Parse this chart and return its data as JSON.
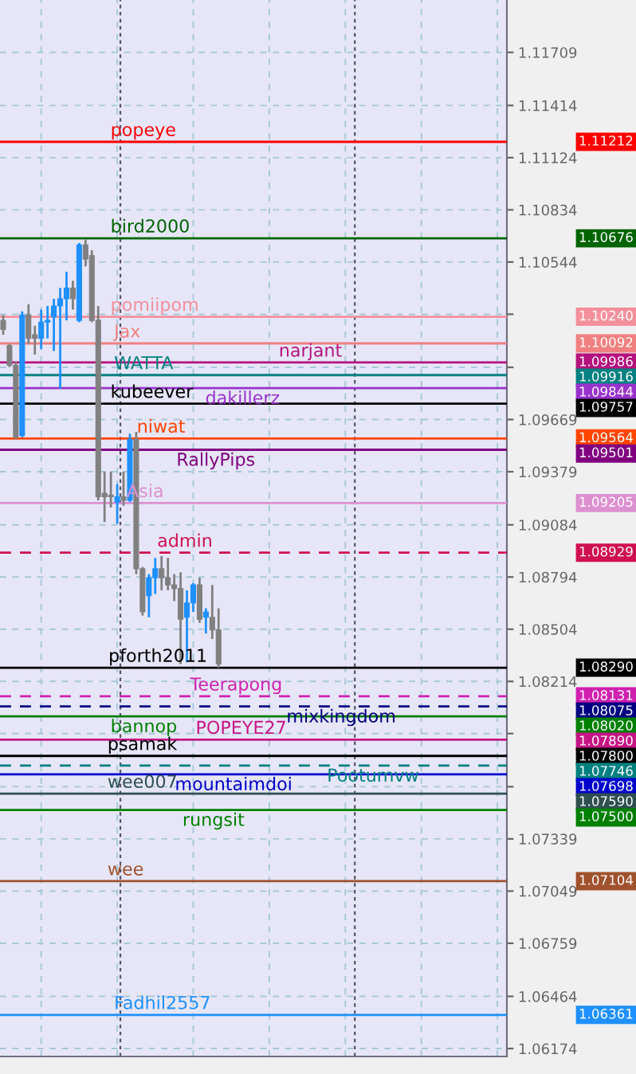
{
  "chart_data": {
    "type": "candlestick",
    "categories": [
      null,
      null,
      null,
      null,
      null,
      null,
      null,
      null,
      null,
      null,
      null,
      null,
      null,
      null,
      null,
      null,
      null,
      null,
      null,
      null,
      null,
      null,
      null,
      null,
      null,
      null,
      null,
      null,
      null,
      null,
      null,
      null,
      null,
      null,
      null,
      null,
      null,
      null,
      null,
      null,
      null,
      null,
      null,
      null,
      null,
      null,
      null,
      null,
      null,
      null,
      null,
      null,
      null,
      null,
      null,
      null,
      null,
      null,
      null,
      null,
      null,
      null,
      null,
      null,
      null,
      null,
      null,
      null,
      null,
      null,
      null,
      null,
      null,
      null,
      null,
      null,
      null,
      null,
      null,
      null
    ],
    "ohlc": [
      [
        1.1022,
        1.1025,
        1.1014,
        1.1017
      ],
      [
        1.1008,
        1.1009,
        1.0996,
        1.0997
      ],
      [
        1.0997,
        1.0999,
        1.0956,
        1.0957
      ],
      [
        1.0958,
        1.1027,
        1.0957,
        1.1025
      ],
      [
        1.1025,
        1.1031,
        1.1009,
        1.1012
      ],
      [
        1.1014,
        1.1019,
        1.1003,
        1.1012
      ],
      [
        1.1012,
        1.1028,
        1.1006,
        1.1021
      ],
      [
        1.1021,
        1.103,
        1.1012,
        1.1022
      ],
      [
        1.1024,
        1.1034,
        1.1005,
        1.103
      ],
      [
        1.103,
        1.104,
        1.0984,
        1.1034
      ],
      [
        1.1034,
        1.1049,
        1.1022,
        1.104
      ],
      [
        1.104,
        1.1044,
        1.1028,
        1.1034
      ],
      [
        1.1022,
        1.1065,
        1.1021,
        1.1064
      ],
      [
        1.1064,
        1.1067,
        1.1052,
        1.1056
      ],
      [
        1.1058,
        1.1061,
        1.1021,
        1.1022
      ],
      [
        1.1022,
        1.103,
        1.0922,
        1.0924
      ],
      [
        1.0926,
        1.0938,
        1.091,
        1.0924
      ],
      [
        1.0925,
        1.0938,
        1.0918,
        1.0924
      ],
      [
        1.0921,
        1.0931,
        1.0909,
        1.0924
      ],
      [
        1.0924,
        1.0938,
        1.0919,
        1.0922
      ],
      [
        1.0922,
        1.0959,
        1.0921,
        1.0956
      ],
      [
        1.0956,
        1.096,
        1.0881,
        1.0884
      ],
      [
        1.0884,
        1.0885,
        1.0858,
        1.086
      ],
      [
        1.0869,
        1.0881,
        1.0857,
        1.0879
      ],
      [
        1.0879,
        1.089,
        1.087,
        1.0884
      ],
      [
        1.0884,
        1.0891,
        1.0872,
        1.0879
      ],
      [
        1.0879,
        1.089,
        1.0872,
        1.0875
      ],
      [
        1.0875,
        1.0881,
        1.0866,
        1.0873
      ],
      [
        1.0873,
        1.0882,
        1.0831,
        1.0856
      ],
      [
        1.0857,
        1.0872,
        1.0832,
        1.0865
      ],
      [
        1.0865,
        1.0876,
        1.086,
        1.0875
      ],
      [
        1.0875,
        1.0879,
        1.0854,
        1.0856
      ],
      [
        1.0857,
        1.0862,
        1.0848,
        1.086
      ],
      [
        1.0857,
        1.0875,
        1.0845,
        1.085
      ],
      [
        1.085,
        1.0862,
        1.0829,
        1.0831
      ],
      null,
      null,
      null,
      null,
      null,
      null,
      null,
      null,
      null,
      null,
      null,
      null,
      null,
      null,
      null,
      null,
      null,
      null,
      null,
      null,
      null,
      null,
      null,
      null,
      null,
      null,
      null,
      null,
      null,
      null,
      null,
      null,
      null,
      null,
      null,
      null,
      null,
      null,
      null,
      null,
      null,
      null,
      null,
      null,
      null
    ],
    "colors": [
      "#808080",
      "#808080",
      "#808080",
      "#1e90ff",
      "#808080",
      "#808080",
      "#1e90ff",
      "#1e90ff",
      "#1e90ff",
      "#1e90ff",
      "#1e90ff",
      "#808080",
      "#1e90ff",
      "#808080",
      "#808080",
      "#808080",
      "#808080",
      "#808080",
      "#1e90ff",
      "#808080",
      "#1e90ff",
      "#808080",
      "#808080",
      "#1e90ff",
      "#1e90ff",
      "#808080",
      "#808080",
      "#808080",
      "#808080",
      "#1e90ff",
      "#1e90ff",
      "#808080",
      "#1e90ff",
      "#808080",
      "#808080",
      null,
      null,
      null,
      null,
      null,
      null,
      null,
      null,
      null,
      null,
      null,
      null,
      null,
      null,
      null,
      null,
      null,
      null,
      null,
      null,
      null,
      null,
      null,
      null,
      null,
      null,
      null,
      null,
      null,
      null,
      null,
      null,
      null,
      null,
      null,
      null,
      null,
      null,
      null,
      null,
      null,
      null,
      null,
      null,
      null
    ],
    "ylim": [
      1.0613,
      1.12
    ],
    "yticks": [
      1.11709,
      1.11414,
      1.11124,
      1.10834,
      1.10544,
      {
        "value": 1.10254,
        "label": null
      },
      {
        "value": 1.09959,
        "label": null
      },
      1.09669,
      1.09379,
      1.09084,
      1.08794,
      1.08504,
      1.08214,
      {
        "value": 1.07924,
        "label": null
      },
      {
        "value": 1.07629,
        "label": null
      },
      1.07339,
      1.07049,
      1.06759,
      1.06464,
      1.06174
    ],
    "grid": true,
    "annotations": [
      "1.11212",
      "1.10676",
      "1.10240",
      "1.10092",
      "1.09986",
      "1.09916",
      "1.09844",
      "1.09757",
      "1.09564",
      "1.09501",
      "1.09205",
      "1.08929",
      "1.08290",
      "1.08131",
      "1.08075",
      "1.08020",
      "1.07890",
      "1.07800",
      "1.07746",
      "1.07698",
      "1.07590",
      "1.07500",
      "1.07104",
      "1.06361"
    ],
    "ref_lines": [
      {
        "axis": "y",
        "value": 1.11212,
        "label": "popeye",
        "color": "#ff0000",
        "line_style": "solid"
      },
      {
        "axis": "y",
        "value": 1.10676,
        "label": "bird2000",
        "color": "#006400",
        "line_style": "solid"
      },
      {
        "axis": "y",
        "value": 1.1024,
        "label": "pomiipom",
        "color": "#f4909c",
        "line_style": "solid"
      },
      {
        "axis": "y",
        "value": 1.10092,
        "label": "Jax",
        "color": "#f08080",
        "line_style": "solid"
      },
      {
        "axis": "y",
        "value": 1.09986,
        "label": "narjant",
        "color": "#b5127d",
        "line_style": "solid"
      },
      {
        "axis": "y",
        "value": 1.09916,
        "label": "WATTA",
        "color": "#008080",
        "line_style": "solid"
      },
      {
        "axis": "y",
        "value": 1.09844,
        "label": "dakillerz",
        "color": "#9932cc",
        "line_style": "solid"
      },
      {
        "axis": "y",
        "value": 1.09757,
        "label": "kubeever",
        "color": "#000000",
        "line_style": "solid"
      },
      {
        "axis": "y",
        "value": 1.09564,
        "label": "niwat",
        "color": "#ff4500",
        "line_style": "solid"
      },
      {
        "axis": "y",
        "value": 1.09501,
        "label": "RallyPips",
        "color": "#800080",
        "line_style": "solid"
      },
      {
        "axis": "y",
        "value": 1.09205,
        "label": "Asia",
        "color": "#dd90d0",
        "line_style": "solid"
      },
      {
        "axis": "y",
        "value": 1.08929,
        "label": "admin",
        "color": "#d01050",
        "line_style": "dashed"
      },
      {
        "axis": "y",
        "value": 1.0829,
        "label": "pforth2011",
        "color": "#000000",
        "line_style": "solid"
      },
      {
        "axis": "y",
        "value": 1.08131,
        "label": "Teerapong",
        "color": "#d020b0",
        "line_style": "dashed"
      },
      {
        "axis": "y",
        "value": 1.08075,
        "label": "mixkingdom",
        "color": "#000080",
        "line_style": "dashed"
      },
      {
        "axis": "y",
        "value": 1.0802,
        "label": "bannop",
        "color": "#008000",
        "line_style": "solid"
      },
      {
        "axis": "y",
        "value": 1.0789,
        "label": "POPEYE27",
        "color": "#c71585",
        "line_style": "solid"
      },
      {
        "axis": "y",
        "value": 1.078,
        "label": "psamak",
        "color": "#000000",
        "line_style": "solid"
      },
      {
        "axis": "y",
        "value": 1.07746,
        "label": "Pootumvw",
        "color": "#008080",
        "line_style": "dashed"
      },
      {
        "axis": "y",
        "value": 1.07698,
        "label": "mountaimdoi",
        "color": "#0000cd",
        "line_style": "solid"
      },
      {
        "axis": "y",
        "value": 1.0759,
        "label": "wee007",
        "color": "#2f4f4f",
        "line_style": "solid"
      },
      {
        "axis": "y",
        "value": 1.075,
        "label": "rungsit",
        "color": "#008000",
        "line_style": "solid"
      },
      {
        "axis": "y",
        "value": 1.07104,
        "label": "wee",
        "color": "#a0522d",
        "line_style": "solid"
      },
      {
        "axis": "y",
        "value": 1.06361,
        "label": "Fadhil2557",
        "color": "#1e90ff",
        "line_style": "solid"
      }
    ]
  }
}
